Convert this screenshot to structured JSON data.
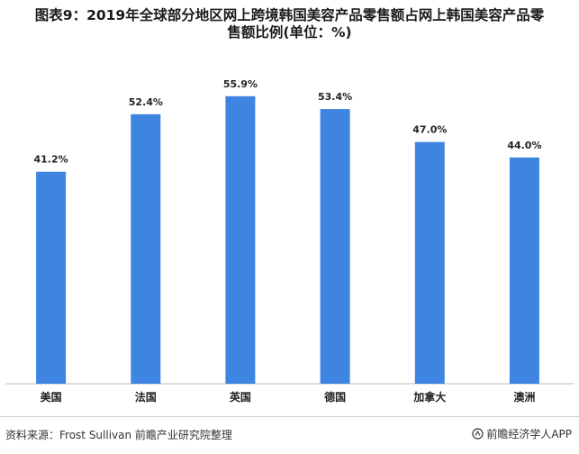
{
  "title_line1": "图表9：2019年全球部分地区网上跨境韩国美容产品零售额占网上韩国美容产品零",
  "title_line2": "售额比例(单位：%)",
  "footer": {
    "source": "资料来源：Frost Sullivan 前瞻产业研究院整理",
    "brand": "前瞻经济学人APP"
  },
  "colors": {
    "bar": "#3d85e0",
    "axis": "#bdbdbd"
  },
  "chart_data": {
    "type": "bar",
    "categories": [
      "美国",
      "法国",
      "英国",
      "德国",
      "加拿大",
      "澳洲"
    ],
    "values": [
      41.2,
      52.4,
      55.9,
      53.4,
      47.0,
      44.0
    ],
    "data_labels": [
      "41.2%",
      "52.4%",
      "55.9%",
      "53.4%",
      "47.0%",
      "44.0%"
    ],
    "title": "图表9：2019年全球部分地区网上跨境韩国美容产品零售额占网上韩国美容产品零售额比例(单位：%)",
    "xlabel": "",
    "ylabel": "",
    "ylim": [
      0,
      60
    ],
    "grid": false,
    "legend": "none"
  }
}
